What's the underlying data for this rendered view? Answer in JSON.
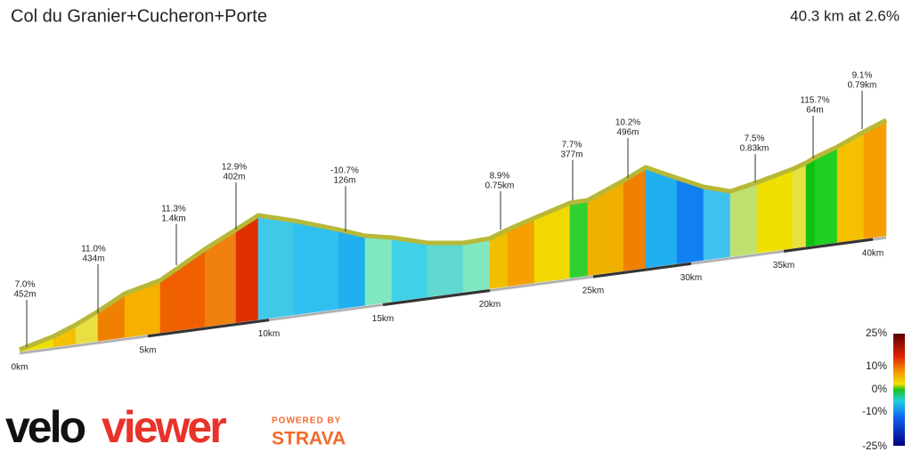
{
  "header": {
    "title": "Col du Granier+Cucheron+Porte",
    "summary": "40.3 km at 2.6%"
  },
  "annotations": [
    {
      "gradient": "7.0%",
      "length": "452m"
    },
    {
      "gradient": "11.0%",
      "length": "434m"
    },
    {
      "gradient": "11.3%",
      "length": "1.4km"
    },
    {
      "gradient": "12.9%",
      "length": "402m"
    },
    {
      "gradient": "-10.7%",
      "length": "126m"
    },
    {
      "gradient": "8.9%",
      "length": "0.75km"
    },
    {
      "gradient": "7.7%",
      "length": "377m"
    },
    {
      "gradient": "10.2%",
      "length": "496m"
    },
    {
      "gradient": "7.5%",
      "length": "0.83km"
    },
    {
      "gradient": "115.7%",
      "length": "64m"
    },
    {
      "gradient": "9.1%",
      "length": "0.79km"
    }
  ],
  "distance_labels": [
    "0km",
    "5km",
    "10km",
    "15km",
    "20km",
    "25km",
    "30km",
    "35km",
    "40km"
  ],
  "legend": [
    "25%",
    "10%",
    "0%",
    "-10%",
    "-25%"
  ],
  "branding": {
    "logo_a": "velo",
    "logo_b": "viewer",
    "powered": "POWERED BY",
    "strava": "STRAVA"
  }
}
